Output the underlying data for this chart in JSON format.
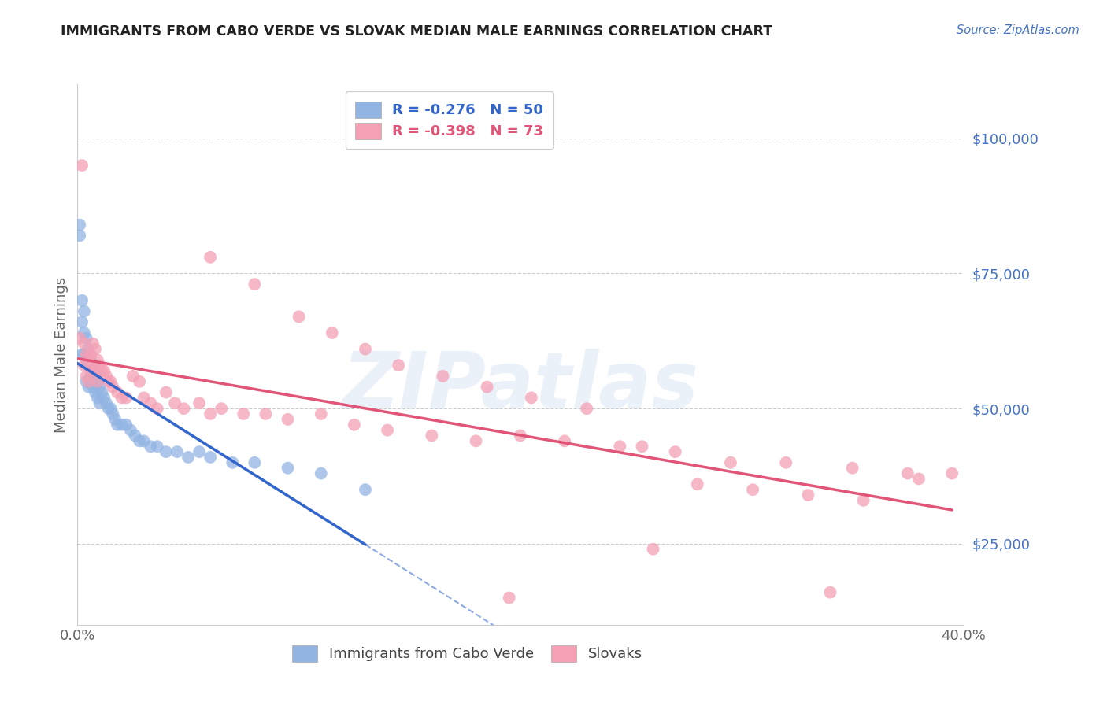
{
  "title": "IMMIGRANTS FROM CABO VERDE VS SLOVAK MEDIAN MALE EARNINGS CORRELATION CHART",
  "source": "Source: ZipAtlas.com",
  "ylabel": "Median Male Earnings",
  "right_yticklabels": [
    "$25,000",
    "$50,000",
    "$75,000",
    "$100,000"
  ],
  "right_yticks": [
    25000,
    50000,
    75000,
    100000
  ],
  "xlim": [
    0.0,
    0.4
  ],
  "ylim": [
    10000,
    110000
  ],
  "cabo_r": -0.276,
  "cabo_n": 50,
  "slovak_r": -0.398,
  "slovak_n": 73,
  "cabo_color": "#92b4e3",
  "slovak_color": "#f4a0b5",
  "cabo_line_color": "#3366cc",
  "slovak_line_color": "#e05578",
  "watermark": "ZIPatlas",
  "cabo_x": [
    0.001,
    0.001,
    0.002,
    0.002,
    0.002,
    0.003,
    0.003,
    0.003,
    0.004,
    0.004,
    0.004,
    0.005,
    0.005,
    0.005,
    0.006,
    0.006,
    0.007,
    0.007,
    0.008,
    0.008,
    0.009,
    0.009,
    0.01,
    0.01,
    0.011,
    0.012,
    0.013,
    0.014,
    0.015,
    0.016,
    0.017,
    0.018,
    0.02,
    0.022,
    0.024,
    0.026,
    0.028,
    0.03,
    0.033,
    0.036,
    0.04,
    0.045,
    0.05,
    0.055,
    0.06,
    0.07,
    0.08,
    0.095,
    0.11,
    0.13
  ],
  "cabo_y": [
    84000,
    82000,
    70000,
    66000,
    60000,
    68000,
    64000,
    60000,
    63000,
    59000,
    55000,
    61000,
    58000,
    54000,
    59000,
    56000,
    57000,
    54000,
    56000,
    53000,
    55000,
    52000,
    54000,
    51000,
    53000,
    52000,
    51000,
    50000,
    50000,
    49000,
    48000,
    47000,
    47000,
    47000,
    46000,
    45000,
    44000,
    44000,
    43000,
    43000,
    42000,
    42000,
    41000,
    42000,
    41000,
    40000,
    40000,
    39000,
    38000,
    35000
  ],
  "slovak_x": [
    0.001,
    0.002,
    0.003,
    0.003,
    0.004,
    0.004,
    0.005,
    0.005,
    0.006,
    0.006,
    0.007,
    0.007,
    0.008,
    0.008,
    0.009,
    0.009,
    0.01,
    0.011,
    0.012,
    0.013,
    0.014,
    0.015,
    0.016,
    0.018,
    0.02,
    0.022,
    0.025,
    0.028,
    0.03,
    0.033,
    0.036,
    0.04,
    0.044,
    0.048,
    0.055,
    0.06,
    0.065,
    0.075,
    0.085,
    0.095,
    0.11,
    0.125,
    0.14,
    0.16,
    0.18,
    0.2,
    0.22,
    0.245,
    0.27,
    0.295,
    0.32,
    0.35,
    0.375,
    0.395,
    0.1,
    0.115,
    0.13,
    0.145,
    0.165,
    0.185,
    0.205,
    0.23,
    0.255,
    0.28,
    0.305,
    0.33,
    0.355,
    0.38,
    0.06,
    0.08,
    0.195,
    0.26,
    0.34
  ],
  "slovak_y": [
    63000,
    95000,
    62000,
    58000,
    60000,
    56000,
    59000,
    55000,
    60000,
    57000,
    62000,
    58000,
    61000,
    57000,
    59000,
    55000,
    58000,
    57000,
    57000,
    56000,
    55000,
    55000,
    54000,
    53000,
    52000,
    52000,
    56000,
    55000,
    52000,
    51000,
    50000,
    53000,
    51000,
    50000,
    51000,
    49000,
    50000,
    49000,
    49000,
    48000,
    49000,
    47000,
    46000,
    45000,
    44000,
    45000,
    44000,
    43000,
    42000,
    40000,
    40000,
    39000,
    38000,
    38000,
    67000,
    64000,
    61000,
    58000,
    56000,
    54000,
    52000,
    50000,
    43000,
    36000,
    35000,
    34000,
    33000,
    37000,
    78000,
    73000,
    15000,
    24000,
    16000
  ]
}
